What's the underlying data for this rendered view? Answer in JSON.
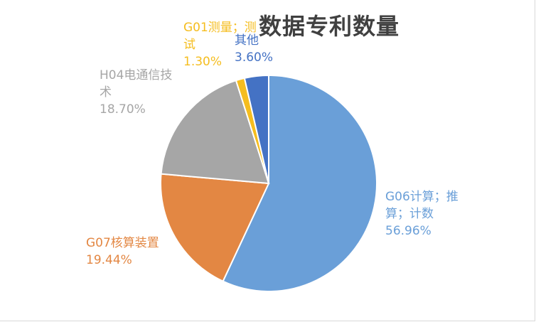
{
  "chart_data": {
    "type": "pie",
    "title": "数据专利数量",
    "slices": [
      {
        "lines": [
          "G06计算；推",
          "算；计数"
        ],
        "percent_label": "56.96%",
        "value": 56.96,
        "color": "#6a9fd8"
      },
      {
        "lines": [
          "G07核算装置"
        ],
        "percent_label": "19.44%",
        "value": 19.44,
        "color": "#e38743"
      },
      {
        "lines": [
          "H04电通信技",
          "术"
        ],
        "percent_label": "18.70%",
        "value": 18.7,
        "color": "#a6a6a6"
      },
      {
        "lines": [
          "G01测量；测",
          "试"
        ],
        "percent_label": "1.30%",
        "value": 1.3,
        "color": "#f5bd1f"
      },
      {
        "lines": [
          "其他"
        ],
        "percent_label": "3.60%",
        "value": 3.6,
        "color": "#4472c4"
      }
    ]
  }
}
